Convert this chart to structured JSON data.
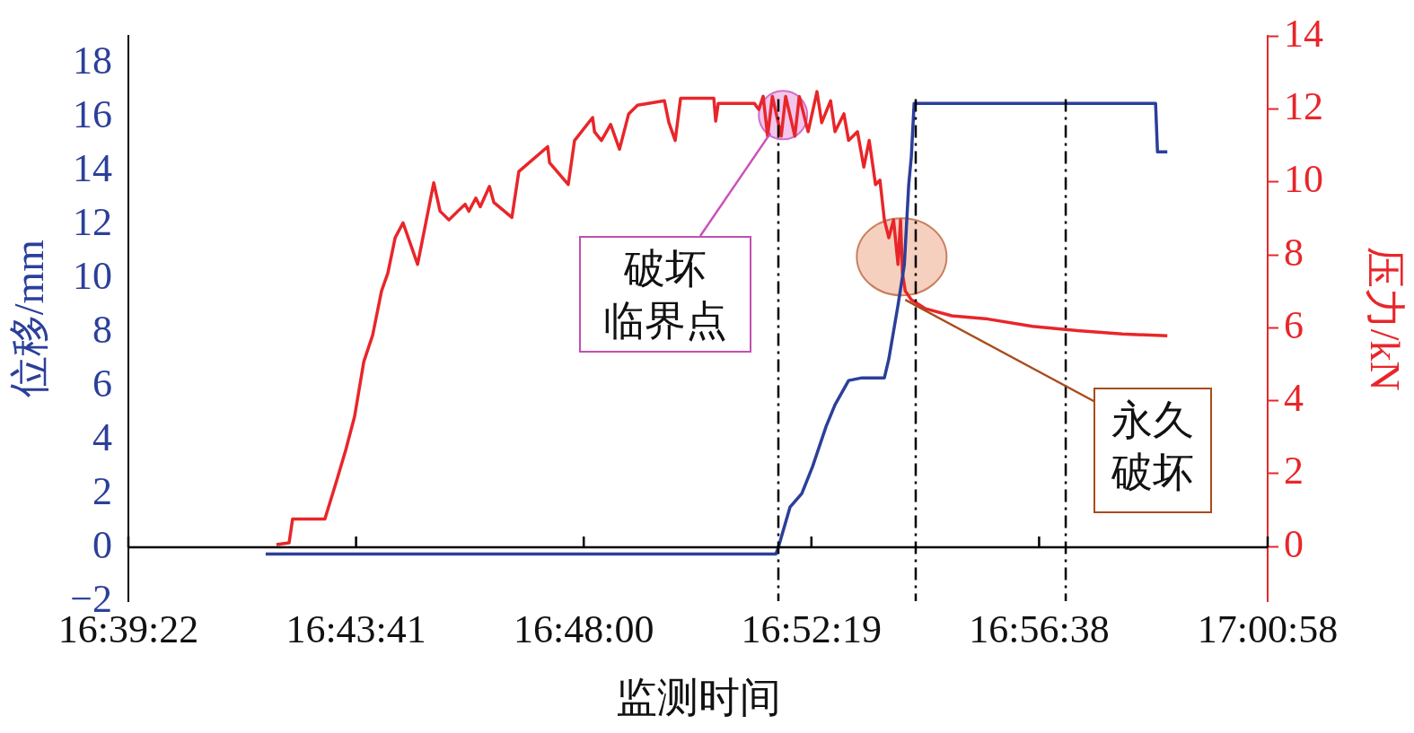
{
  "chart_data": {
    "type": "line",
    "xlabel": "监测时间",
    "ylabel": "位移/mm",
    "y2label": "压力/kN",
    "xlim": [
      16.656111,
      17.016111
    ],
    "xticks": [
      {
        "value": 16.656111,
        "label": "16:39:22"
      },
      {
        "value": 16.728056,
        "label": "16:43:41"
      },
      {
        "value": 16.8,
        "label": "16:48:00"
      },
      {
        "value": 16.871944,
        "label": "16:52:19"
      },
      {
        "value": 16.943889,
        "label": "16:56:38"
      },
      {
        "value": 17.016111,
        "label": "17:00:58"
      }
    ],
    "ylim": [
      -2,
      19
    ],
    "yticks": [
      {
        "value": -2,
        "label": "−2"
      },
      0,
      2,
      4,
      6,
      8,
      10,
      12,
      14,
      16,
      18
    ],
    "y2lim": [
      -1.5,
      14
    ],
    "y2ticks": [
      0,
      2,
      4,
      6,
      8,
      10,
      12,
      14
    ],
    "series": [
      {
        "color": "#2b3f9a",
        "x": [
          16.6995,
          16.8607,
          16.8615,
          16.8652,
          16.8689,
          16.8723,
          16.8766,
          16.8794,
          16.8837,
          16.8879,
          16.895,
          16.8964,
          16.8993,
          16.9013,
          16.9027,
          16.9035,
          16.9044,
          16.9807,
          16.9813,
          16.9844
        ],
        "values": [
          -0.25,
          -0.25,
          0,
          1.5,
          2,
          3,
          4.5,
          5.3,
          6.2,
          6.3,
          6.3,
          7,
          9,
          10.5,
          13.5,
          14.5,
          16.5,
          16.5,
          14.7,
          14.7
        ]
      },
      {
        "color": "#e8262a",
        "axis": "y2",
        "x": [
          16.7029,
          16.7069,
          16.708,
          16.7182,
          16.7219,
          16.7248,
          16.7276,
          16.7305,
          16.7333,
          16.7361,
          16.7381,
          16.7404,
          16.7429,
          16.7475,
          16.7526,
          16.7546,
          16.7574,
          16.7602,
          16.7625,
          16.7637,
          16.7659,
          16.7673,
          16.7702,
          16.7716,
          16.7773,
          16.7795,
          16.7886,
          16.7892,
          16.7951,
          16.7971,
          16.8028,
          16.8034,
          16.8056,
          16.8085,
          16.8113,
          16.8142,
          16.817,
          16.8255,
          16.8269,
          16.8289,
          16.8306,
          16.8411,
          16.8417,
          16.8425,
          16.8539,
          16.8553,
          16.8567,
          16.8581,
          16.8596,
          16.8624,
          16.8638,
          16.8667,
          16.8681,
          16.8709,
          16.8737,
          16.8752,
          16.878,
          16.8794,
          16.8822,
          16.8837,
          16.8865,
          16.8885,
          16.8902,
          16.8922,
          16.8936,
          16.895,
          16.8964,
          16.8979,
          16.8993,
          16.9001,
          16.9007,
          16.9016,
          16.9035,
          16.9078,
          16.9163,
          16.9277,
          16.9418,
          16.956,
          16.9702,
          16.9844
        ],
        "values": [
          0.05,
          0.1,
          0.75,
          0.75,
          1.8,
          2.65,
          3.57,
          5.07,
          5.8,
          7.01,
          7.5,
          8.47,
          8.88,
          7.74,
          9.98,
          9.2,
          8.96,
          9.2,
          9.39,
          9.2,
          9.56,
          9.32,
          9.88,
          9.44,
          9.03,
          10.29,
          10.97,
          10.53,
          9.93,
          11.14,
          11.77,
          11.38,
          11.14,
          11.58,
          10.9,
          11.87,
          12.11,
          12.23,
          11.63,
          11.14,
          12.3,
          12.3,
          11.67,
          12.16,
          12.16,
          11.99,
          12.35,
          11.26,
          12.35,
          11.26,
          12.35,
          11.26,
          12.35,
          11.38,
          12.48,
          11.63,
          12.23,
          11.38,
          11.87,
          11.14,
          11.38,
          10.41,
          11.14,
          9.93,
          10.05,
          8.96,
          8.47,
          8.96,
          7.74,
          8.96,
          7.5,
          7.01,
          6.77,
          6.53,
          6.33,
          6.24,
          6.04,
          5.92,
          5.83,
          5.78
        ]
      }
    ],
    "ref_lines": [
      {
        "axis": "x",
        "value": 16.8615,
        "color": "#000000",
        "line_style": "dashed"
      },
      {
        "axis": "x",
        "value": 16.9049,
        "color": "#000000",
        "line_style": "dashed"
      },
      {
        "axis": "x",
        "value": 16.9523,
        "color": "#000000",
        "line_style": "dashed"
      }
    ],
    "annotations": [
      {
        "text": "破坏临界点",
        "x": 16.859,
        "y": 15.4
      },
      {
        "text": "永久破坏",
        "x": 16.9016,
        "y": 9.2
      }
    ],
    "grid": false,
    "legend": false,
    "marker": "none",
    "line_style": "solid"
  }
}
